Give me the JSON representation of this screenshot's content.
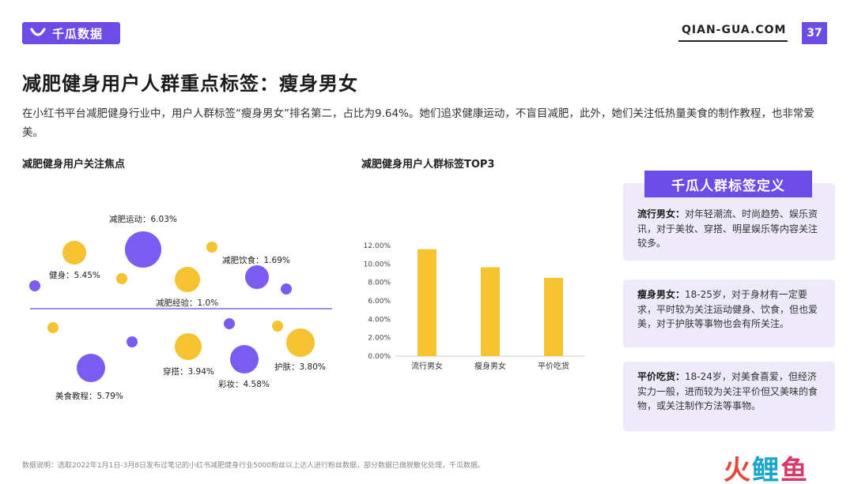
{
  "header": {
    "brand": "千瓜数据",
    "site": "QIAN-GUA.COM",
    "page_number": "37",
    "accent_color": "#6b4de6"
  },
  "title": "减肥健身用户人群重点标签：瘦身男女",
  "intro": "在小红书平台减肥健身行业中，用户人群标签“瘦身男女”排名第二，占比为9.64%。她们追求健康运动，不盲目减肥，此外，她们关注低热量美食的制作教程，也非常爱美。",
  "left_section": {
    "title": "减肥健身用户关注焦点",
    "focus_points": [
      {
        "label": "减肥运动：6.03%",
        "color": "#7b5cf0"
      },
      {
        "label": "健身：5.45%",
        "color": "#f5c232"
      },
      {
        "label": "减肥饮食：1.69%",
        "color": "#7b5cf0"
      },
      {
        "label": "减肥经验：1.0%",
        "color": "#f5c232"
      },
      {
        "label": "穿搭：3.94%",
        "color": "#f5c232"
      },
      {
        "label": "护肤：3.80%",
        "color": "#f5c232"
      },
      {
        "label": "彩妆：4.58%",
        "color": "#7b5cf0"
      },
      {
        "label": "美食教程：5.79%",
        "color": "#7b5cf0"
      }
    ]
  },
  "chart_data": {
    "type": "bar",
    "title": "减肥健身用户人群标签TOP3",
    "categories": [
      "流行男女",
      "瘦身男女",
      "平价吃货"
    ],
    "values": [
      11.6,
      9.64,
      8.5
    ],
    "ylim": [
      0,
      12
    ],
    "yticks": [
      "0.00%",
      "2.00%",
      "4.00%",
      "6.00%",
      "8.00%",
      "10.00%",
      "12.00%"
    ],
    "bar_color": "#f5c232",
    "grid": false
  },
  "definitions": {
    "title": "千瓜人群标签定义",
    "cards": [
      {
        "term": "流行男女：",
        "text": "对年轻潮流、时尚趋势、娱乐资讯，对于美妆、穿搭、明星娱乐等内容关注较多。"
      },
      {
        "term": "瘦身男女：",
        "text": "18-25岁，对于身材有一定要求，平时较为关注运动健身、饮食，但也爱美，对于护肤等事物也会有所关注。"
      },
      {
        "term": "平价吃货：",
        "text": "18-24岁，对美食喜爱，但经济实力一般，进而较为关注平价但又美味的食物，或关注制作方法等事物。"
      }
    ]
  },
  "footnote": "数据说明：选取2022年1月1日-3月8日发布过笔记的小红书减肥健身行业5000粉丝以上达人进行粉丝数据，部分数据已做脱敏化处理，千瓜数据。",
  "corner_brand": {
    "c1": "火",
    "c2": "鲤",
    "c3": "鱼"
  }
}
